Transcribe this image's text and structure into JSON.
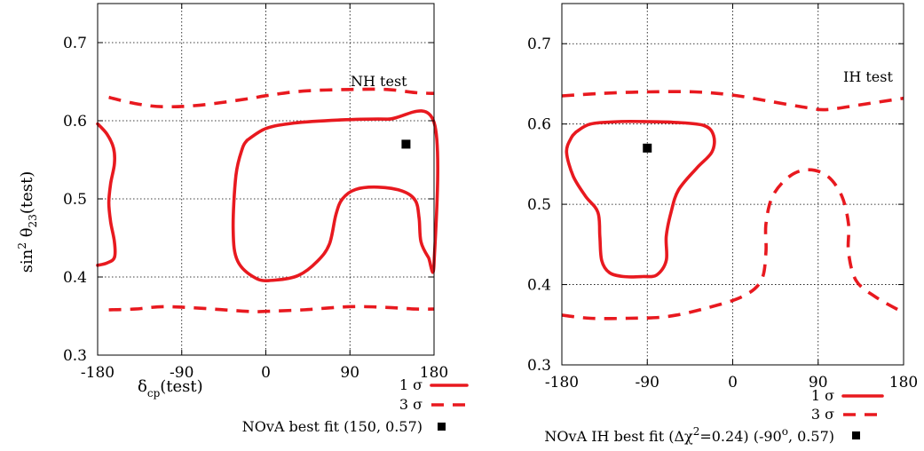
{
  "chart_data": [
    {
      "type": "line",
      "title": "",
      "annotation": "NH test",
      "xlabel_main": "δ",
      "xlabel_sub": "cp",
      "xlabel_tail": "(test)",
      "ylabel": "sin² θ₂₃(test)",
      "xlim": [
        -180,
        180
      ],
      "ylim": [
        0.3,
        0.75
      ],
      "xticks": [
        "-180",
        "-90",
        "0",
        "90",
        "180"
      ],
      "yticks": [
        "0.3",
        "0.4",
        "0.5",
        "0.6",
        "0.7"
      ],
      "grid": true,
      "legend": [
        {
          "label": "1 σ",
          "style": "solid"
        },
        {
          "label": "3 σ",
          "style": "dashed"
        },
        {
          "label": "NOvA best fit (150, 0.57)",
          "style": "square"
        }
      ],
      "best_fit": {
        "x": 150,
        "y": 0.57
      },
      "series": [
        {
          "level": "1σ",
          "style": "solid",
          "points": [
            [
              -180,
              0.596
            ],
            [
              -170,
              0.583
            ],
            [
              -163,
              0.565
            ],
            [
              -162,
              0.545
            ],
            [
              -166,
              0.52
            ],
            [
              -168,
              0.495
            ],
            [
              -166,
              0.47
            ],
            [
              -162,
              0.445
            ],
            [
              -162,
              0.425
            ],
            [
              -170,
              0.418
            ],
            [
              -180,
              0.415
            ]
          ]
        },
        {
          "level": "1σ",
          "style": "solid",
          "points": [
            [
              -20,
              0.575
            ],
            [
              0,
              0.59
            ],
            [
              30,
              0.597
            ],
            [
              80,
              0.601
            ],
            [
              130,
              0.602
            ],
            [
              180,
              0.598
            ],
            [
              180,
              0.418
            ],
            [
              174,
              0.425
            ],
            [
              166,
              0.445
            ],
            [
              164,
              0.475
            ],
            [
              160,
              0.498
            ],
            [
              146,
              0.51
            ],
            [
              120,
              0.515
            ],
            [
              96,
              0.512
            ],
            [
              82,
              0.5
            ],
            [
              75,
              0.48
            ],
            [
              68,
              0.442
            ],
            [
              55,
              0.42
            ],
            [
              35,
              0.402
            ],
            [
              10,
              0.396
            ],
            [
              -10,
              0.398
            ],
            [
              -30,
              0.42
            ],
            [
              -35,
              0.46
            ],
            [
              -32,
              0.53
            ],
            [
              -25,
              0.565
            ],
            [
              -20,
              0.575
            ]
          ]
        },
        {
          "level": "3σ",
          "style": "dashed",
          "points": [
            [
              -168,
              0.63
            ],
            [
              -140,
              0.622
            ],
            [
              -110,
              0.618
            ],
            [
              -70,
              0.62
            ],
            [
              -20,
              0.628
            ],
            [
              0,
              0.632
            ],
            [
              40,
              0.638
            ],
            [
              90,
              0.64
            ],
            [
              130,
              0.64
            ],
            [
              160,
              0.636
            ],
            [
              180,
              0.635
            ]
          ]
        },
        {
          "level": "3σ",
          "style": "dashed",
          "points": [
            [
              -168,
              0.358
            ],
            [
              -140,
              0.359
            ],
            [
              -110,
              0.362
            ],
            [
              -70,
              0.36
            ],
            [
              -20,
              0.356
            ],
            [
              0,
              0.356
            ],
            [
              40,
              0.358
            ],
            [
              90,
              0.362
            ],
            [
              130,
              0.361
            ],
            [
              160,
              0.359
            ],
            [
              180,
              0.359
            ]
          ]
        }
      ]
    },
    {
      "type": "line",
      "title": "",
      "annotation": "IH test",
      "xlim": [
        -180,
        180
      ],
      "ylim": [
        0.3,
        0.75
      ],
      "xticks": [
        "-180",
        "-90",
        "0",
        "90",
        "180"
      ],
      "yticks": [
        "0.3",
        "0.4",
        "0.5",
        "0.6",
        "0.7"
      ],
      "grid": true,
      "legend": [
        {
          "label": "1 σ",
          "style": "solid"
        },
        {
          "label": "3 σ",
          "style": "dashed"
        },
        {
          "label": "NOvA IH best fit (Δχ²=0.24) (-90°, 0.57)",
          "style": "square"
        }
      ],
      "legend_last_parts": {
        "a": "NOvA IH best fit (Δχ",
        "sup1": "2",
        "b": "=0.24) (-90",
        "sup2": "o",
        "c": ", 0.57)"
      },
      "best_fit": {
        "x": -90,
        "y": 0.57
      },
      "series": [
        {
          "level": "1σ",
          "style": "solid",
          "points": [
            [
              -165,
              0.59
            ],
            [
              -150,
              0.6
            ],
            [
              -120,
              0.603
            ],
            [
              -90,
              0.603
            ],
            [
              -60,
              0.602
            ],
            [
              -30,
              0.598
            ],
            [
              -20,
              0.585
            ],
            [
              -22,
              0.565
            ],
            [
              -38,
              0.545
            ],
            [
              -57,
              0.518
            ],
            [
              -65,
              0.49
            ],
            [
              -70,
              0.46
            ],
            [
              -70,
              0.43
            ],
            [
              -80,
              0.412
            ],
            [
              -95,
              0.41
            ],
            [
              -115,
              0.41
            ],
            [
              -130,
              0.415
            ],
            [
              -138,
              0.43
            ],
            [
              -140,
              0.46
            ],
            [
              -142,
              0.49
            ],
            [
              -155,
              0.51
            ],
            [
              -168,
              0.535
            ],
            [
              -175,
              0.565
            ],
            [
              -170,
              0.583
            ],
            [
              -165,
              0.59
            ]
          ]
        },
        {
          "level": "3σ",
          "style": "dashed",
          "points": [
            [
              -180,
              0.635
            ],
            [
              -140,
              0.638
            ],
            [
              -90,
              0.64
            ],
            [
              -40,
              0.64
            ],
            [
              0,
              0.636
            ],
            [
              40,
              0.628
            ],
            [
              80,
              0.62
            ],
            [
              100,
              0.618
            ],
            [
              140,
              0.625
            ],
            [
              180,
              0.632
            ]
          ]
        },
        {
          "level": "3σ",
          "style": "dashed",
          "points": [
            [
              -180,
              0.362
            ],
            [
              -150,
              0.358
            ],
            [
              -110,
              0.358
            ],
            [
              -70,
              0.36
            ],
            [
              -30,
              0.37
            ],
            [
              10,
              0.385
            ],
            [
              30,
              0.405
            ],
            [
              35,
              0.44
            ],
            [
              35,
              0.475
            ],
            [
              42,
              0.51
            ],
            [
              60,
              0.535
            ],
            [
              80,
              0.543
            ],
            [
              100,
              0.535
            ],
            [
              115,
              0.51
            ],
            [
              122,
              0.475
            ],
            [
              122,
              0.44
            ],
            [
              130,
              0.405
            ],
            [
              150,
              0.385
            ],
            [
              180,
              0.365
            ]
          ]
        }
      ]
    }
  ]
}
